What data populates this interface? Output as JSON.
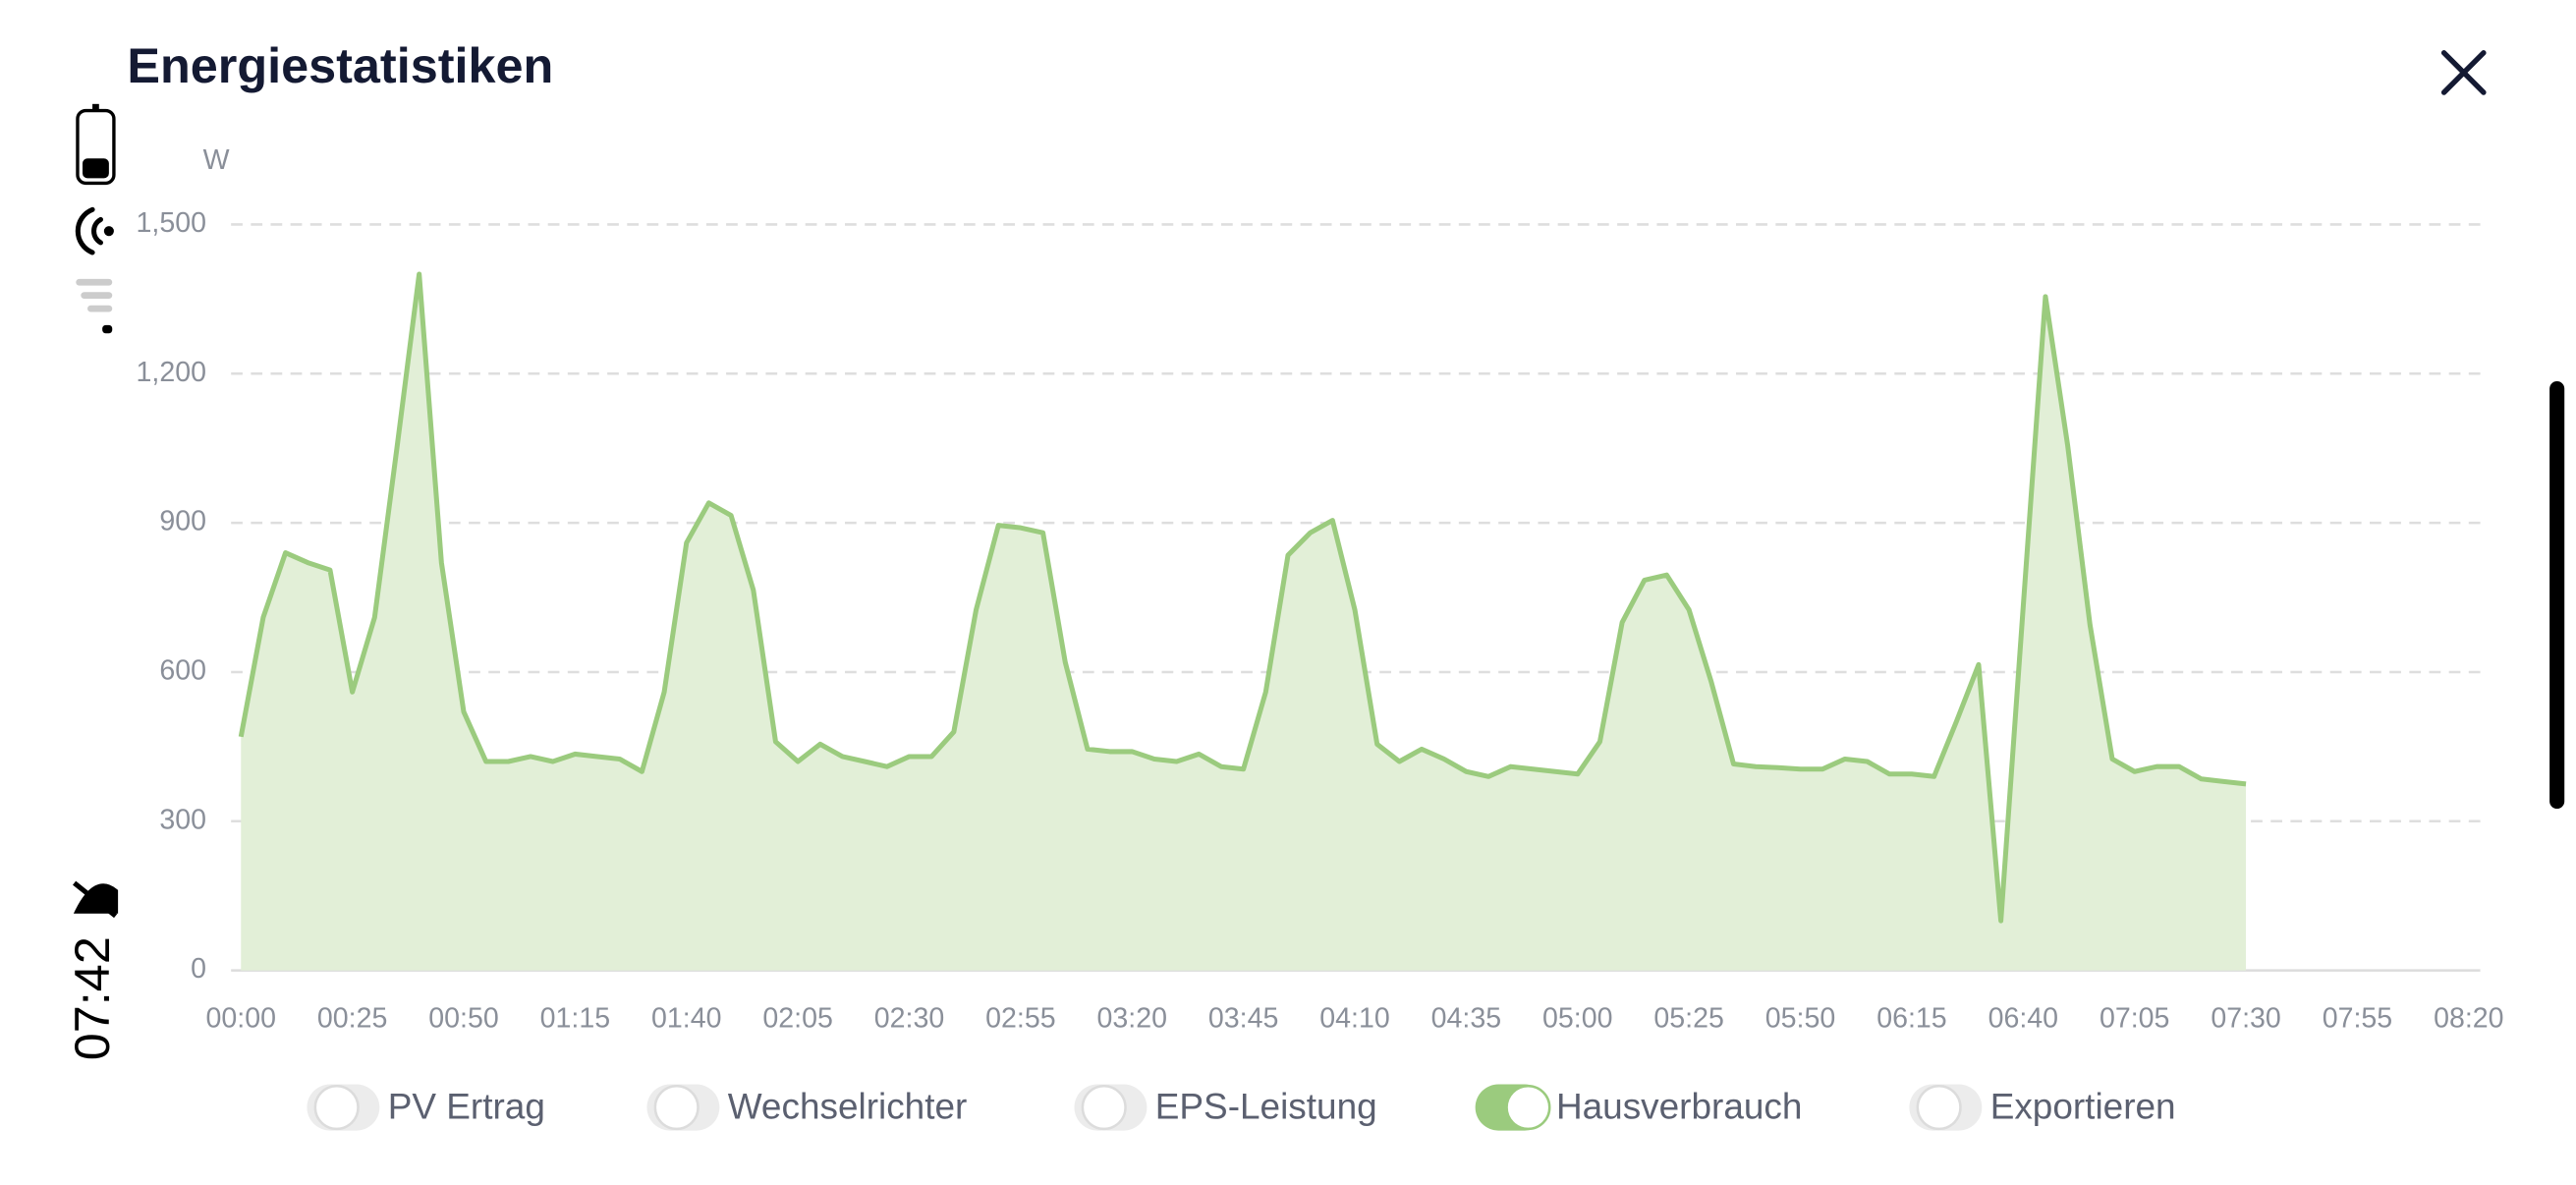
{
  "status_bar": {
    "time": "07:42"
  },
  "chart_data": {
    "type": "area",
    "title": "Energiestatistiken",
    "y_unit": "W",
    "x": [
      0,
      5,
      10,
      15,
      20,
      25,
      30,
      35,
      40,
      45,
      50,
      55,
      60,
      65,
      70,
      75,
      80,
      85,
      90,
      95,
      100,
      105,
      110,
      115,
      120,
      125,
      130,
      135,
      140,
      145,
      150,
      155,
      160,
      165,
      170,
      175,
      180,
      185,
      190,
      195,
      200,
      205,
      210,
      215,
      220,
      225,
      230,
      235,
      240,
      245,
      250,
      255,
      260,
      265,
      270,
      275,
      280,
      285,
      290,
      295,
      300,
      305,
      310,
      315,
      320,
      325,
      330,
      335,
      340,
      345,
      350,
      355,
      360,
      365,
      370,
      375,
      380,
      385,
      390,
      395,
      400,
      405,
      410,
      415,
      420,
      425,
      430,
      435,
      440,
      445,
      450
    ],
    "series": [
      {
        "color": "#9bcb7e",
        "fill": "#e2efd7",
        "values": [
          470,
          710,
          840,
          820,
          805,
          560,
          710,
          1050,
          1400,
          820,
          520,
          420,
          420,
          430,
          420,
          435,
          430,
          425,
          400,
          560,
          860,
          940,
          915,
          765,
          460,
          420,
          455,
          430,
          420,
          410,
          430,
          430,
          480,
          725,
          895,
          890,
          880,
          620,
          445,
          440,
          440,
          425,
          420,
          435,
          410,
          405,
          560,
          835,
          880,
          905,
          725,
          455,
          420,
          445,
          425,
          400,
          390,
          410,
          405,
          400,
          395,
          460,
          700,
          785,
          795,
          725,
          580,
          415,
          410,
          408,
          405,
          405,
          425,
          420,
          395,
          395,
          390,
          500,
          615,
          100,
          730,
          1355,
          1055,
          695,
          425,
          400,
          410,
          410,
          385,
          380,
          375
        ]
      }
    ],
    "xlim": [
      0,
      500
    ],
    "xticks": [
      {
        "value": 0,
        "label": "00:00"
      },
      {
        "value": 25,
        "label": "00:25"
      },
      {
        "value": 50,
        "label": "00:50"
      },
      {
        "value": 75,
        "label": "01:15"
      },
      {
        "value": 100,
        "label": "01:40"
      },
      {
        "value": 125,
        "label": "02:05"
      },
      {
        "value": 150,
        "label": "02:30"
      },
      {
        "value": 175,
        "label": "02:55"
      },
      {
        "value": 200,
        "label": "03:20"
      },
      {
        "value": 225,
        "label": "03:45"
      },
      {
        "value": 250,
        "label": "04:10"
      },
      {
        "value": 275,
        "label": "04:35"
      },
      {
        "value": 300,
        "label": "05:00"
      },
      {
        "value": 325,
        "label": "05:25"
      },
      {
        "value": 350,
        "label": "05:50"
      },
      {
        "value": 375,
        "label": "06:15"
      },
      {
        "value": 400,
        "label": "06:40"
      },
      {
        "value": 425,
        "label": "07:05"
      },
      {
        "value": 450,
        "label": "07:30"
      },
      {
        "value": 475,
        "label": "07:55"
      },
      {
        "value": 500,
        "label": "08:20"
      }
    ],
    "ylim": [
      0,
      1500
    ],
    "yticks": [
      0,
      300,
      600,
      900,
      {
        "value": 1200,
        "label": "1,200"
      },
      {
        "value": 1500,
        "label": "1,500"
      }
    ],
    "grid": true,
    "legend": [
      {
        "name": "PV Ertrag",
        "on": false
      },
      {
        "name": "Wechselrichter",
        "on": false
      },
      {
        "name": "EPS-Leistung",
        "on": false
      },
      {
        "name": "Hausverbrauch",
        "on": true
      },
      {
        "name": "Exportieren",
        "on": false
      }
    ]
  }
}
